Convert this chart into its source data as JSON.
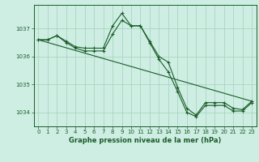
{
  "title": "Graphe pression niveau de la mer (hPa)",
  "background_color": "#ceeee4",
  "grid_color": "#aad4c0",
  "line_color": "#1a5c28",
  "marker_color": "#1a5c28",
  "xlim": [
    -0.5,
    23.5
  ],
  "ylim": [
    1033.5,
    1037.85
  ],
  "yticks": [
    1034,
    1035,
    1036,
    1037
  ],
  "xticks": [
    0,
    1,
    2,
    3,
    4,
    5,
    6,
    7,
    8,
    9,
    10,
    11,
    12,
    13,
    14,
    15,
    16,
    17,
    18,
    19,
    20,
    21,
    22,
    23
  ],
  "series": [
    {
      "x": [
        0,
        1,
        2,
        3,
        4,
        5,
        6,
        7,
        8,
        9,
        10,
        11,
        12,
        13,
        14,
        15,
        16,
        17,
        18,
        19,
        20,
        21,
        22,
        23
      ],
      "y": [
        1036.6,
        1036.6,
        1036.75,
        1036.55,
        1036.35,
        1036.3,
        1036.3,
        1036.3,
        1037.1,
        1037.55,
        1037.1,
        1037.1,
        1036.55,
        1036.0,
        1035.8,
        1034.9,
        1034.15,
        1033.9,
        1034.35,
        1034.35,
        1034.35,
        1034.15,
        1034.1,
        1034.4
      ],
      "markers": true
    },
    {
      "x": [
        0,
        1,
        2,
        3,
        4,
        5,
        6,
        7,
        8,
        9,
        10,
        11,
        12,
        13,
        14,
        15,
        16,
        17,
        18,
        19,
        20,
        21,
        22,
        23
      ],
      "y": [
        1036.6,
        1036.6,
        1036.75,
        1036.5,
        1036.3,
        1036.2,
        1036.2,
        1036.2,
        1036.8,
        1037.3,
        1037.1,
        1037.1,
        1036.5,
        1035.9,
        1035.45,
        1034.75,
        1034.0,
        1033.85,
        1034.25,
        1034.25,
        1034.25,
        1034.05,
        1034.05,
        1034.35
      ],
      "markers": true
    },
    {
      "x": [
        0,
        23
      ],
      "y": [
        1036.6,
        1034.4
      ],
      "markers": false
    }
  ]
}
